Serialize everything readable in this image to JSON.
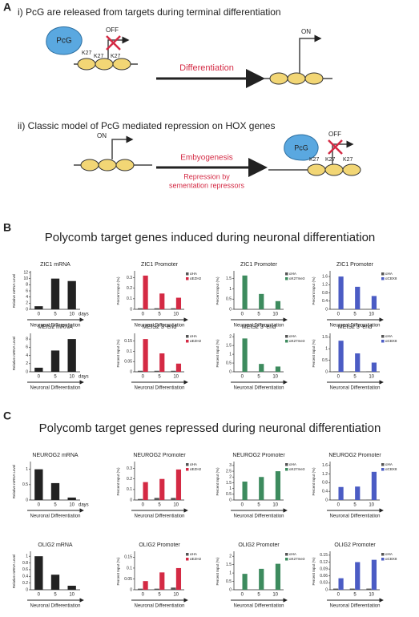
{
  "panel_a": {
    "label": "A",
    "i_title": "i) PcG are released from targets during terminal differentiation",
    "i_pcg": "PcG",
    "i_off": "OFF",
    "i_k27": [
      "K27",
      "K27",
      "K27"
    ],
    "i_arrow": "Differentiation",
    "i_on": "ON",
    "ii_title": "ii) Classic model of PcG mediated repression on HOX genes",
    "ii_on": "ON",
    "ii_arrow": "Embyogenesis",
    "ii_note": [
      "Repression by",
      "sementation repressors"
    ],
    "ii_pcg": "PcG",
    "ii_off": "OFF",
    "ii_k27": [
      "K27",
      "K27",
      "K27"
    ]
  },
  "panel_b": {
    "label": "B",
    "title": "Polycomb target genes induced during neuronal differentiation"
  },
  "panel_c": {
    "label": "C",
    "title": "Polycomb target genes repressed during neuronal differentiation"
  },
  "chart_data": [
    {
      "type": "bar",
      "title": "ZIC1 mRNA",
      "ylabel": "Relative mRNA Level",
      "xlabel": "Neuronal Differentiation",
      "x_unit": "days",
      "categories": [
        "0",
        "5",
        "10"
      ],
      "values": [
        1,
        10,
        9.2
      ],
      "color": "#222222",
      "ylim": [
        0,
        12
      ],
      "yticks": [
        0,
        2,
        4,
        6,
        8,
        10,
        12
      ]
    },
    {
      "type": "bar",
      "title": "ZIC1 Promoter",
      "ylabel": "Percent Input (%)",
      "xlabel": "Neuronal Differentiation",
      "categories": [
        "0",
        "5",
        "10"
      ],
      "series": [
        {
          "name": "αHA",
          "color": "#555555",
          "values": [
            0.01,
            0.01,
            0.01
          ]
        },
        {
          "name": "αEZH2",
          "color": "#d42a44",
          "values": [
            0.32,
            0.15,
            0.11
          ]
        }
      ],
      "ylim": [
        0,
        0.35
      ],
      "yticks": [
        0,
        0.1,
        0.2,
        0.3
      ]
    },
    {
      "type": "bar",
      "title": "ZIC1 Promoter",
      "ylabel": "Percent Input (%)",
      "xlabel": "Neuronal Differentiation",
      "categories": [
        "0",
        "5",
        "10"
      ],
      "series": [
        {
          "name": "αHA",
          "color": "#555555",
          "values": [
            0.02,
            0.02,
            0.02
          ]
        },
        {
          "name": "αK27me3",
          "color": "#3d8b5e",
          "values": [
            1.65,
            0.75,
            0.4
          ]
        }
      ],
      "ylim": [
        0,
        1.8
      ],
      "yticks": [
        0,
        0.5,
        1,
        1.5
      ]
    },
    {
      "type": "bar",
      "title": "ZIC1 Promoter",
      "ylabel": "Percent Input (%)",
      "xlabel": "Neuronal Differentiation",
      "categories": [
        "0",
        "5",
        "10"
      ],
      "series": [
        {
          "name": "αHA",
          "color": "#555555",
          "values": [
            0.02,
            0.02,
            0.02
          ]
        },
        {
          "name": "αCBX8",
          "color": "#4b5cc4",
          "values": [
            1.6,
            1.1,
            0.65
          ]
        }
      ],
      "ylim": [
        0,
        1.8
      ],
      "yticks": [
        0,
        0.4,
        0.8,
        1.2,
        1.6
      ]
    },
    {
      "type": "bar",
      "title": "MEIS2 mRNA",
      "ylabel": "Relative mRNA Level",
      "xlabel": "Neuronal Differentiation",
      "x_unit": "days",
      "categories": [
        "0",
        "5",
        "10"
      ],
      "values": [
        1,
        5.2,
        8
      ],
      "color": "#222222",
      "ylim": [
        0,
        9
      ],
      "yticks": [
        0,
        2,
        4,
        6,
        8
      ]
    },
    {
      "type": "bar",
      "title": "MEIS2 3'-end",
      "ylabel": "Percent Input (%)",
      "xlabel": "Neuronal Differentiation",
      "categories": [
        "0",
        "5",
        "10"
      ],
      "series": [
        {
          "name": "αHA",
          "color": "#555555",
          "values": [
            0.005,
            0.005,
            0.005
          ]
        },
        {
          "name": "αEZH2",
          "color": "#d42a44",
          "values": [
            0.16,
            0.09,
            0.04
          ]
        }
      ],
      "ylim": [
        0,
        0.18
      ],
      "yticks": [
        0,
        0.05,
        0.1,
        0.15
      ]
    },
    {
      "type": "bar",
      "title": "MEIS2 3'-end",
      "ylabel": "Percent Input (%)",
      "xlabel": "Neuronal Differentiation",
      "categories": [
        "0",
        "5",
        "10"
      ],
      "series": [
        {
          "name": "αHA",
          "color": "#555555",
          "values": [
            0.02,
            0.02,
            0.02
          ]
        },
        {
          "name": "αK27me3",
          "color": "#3d8b5e",
          "values": [
            1.9,
            0.45,
            0.3
          ]
        }
      ],
      "ylim": [
        0,
        2.1
      ],
      "yticks": [
        0,
        0.5,
        1,
        1.5,
        2
      ]
    },
    {
      "type": "bar",
      "title": "MEIS2 3'-end",
      "ylabel": "Percent Input (%)",
      "xlabel": "Neuronal Differentiation",
      "categories": [
        "0",
        "5",
        "10"
      ],
      "series": [
        {
          "name": "αHA",
          "color": "#555555",
          "values": [
            0.02,
            0.02,
            0.02
          ]
        },
        {
          "name": "αCBX8",
          "color": "#4b5cc4",
          "values": [
            1.35,
            0.8,
            0.4
          ]
        }
      ],
      "ylim": [
        0,
        1.6
      ],
      "yticks": [
        0,
        0.5,
        1,
        1.5
      ]
    },
    {
      "type": "bar",
      "title": "NEUROG2 mRNA",
      "ylabel": "Relative mRNA Level",
      "xlabel": "Neuronal Differentiation",
      "x_unit": "days",
      "categories": [
        "0",
        "5",
        "10"
      ],
      "values": [
        1,
        0.55,
        0.08
      ],
      "color": "#222222",
      "ylim": [
        0,
        1.2
      ],
      "yticks": [
        0,
        0.5,
        1
      ]
    },
    {
      "type": "bar",
      "title": "NEUROG2 Promoter",
      "ylabel": "Percent Input (%)",
      "xlabel": "Neuronal Differentiation",
      "categories": [
        "0",
        "5",
        "10"
      ],
      "series": [
        {
          "name": "αHA",
          "color": "#555555",
          "values": [
            0.01,
            0.02,
            0.02
          ]
        },
        {
          "name": "αEZH2",
          "color": "#d42a44",
          "values": [
            0.17,
            0.2,
            0.29
          ]
        }
      ],
      "ylim": [
        0,
        0.35
      ],
      "yticks": [
        0,
        0.1,
        0.2,
        0.3
      ]
    },
    {
      "type": "bar",
      "title": "NEUROG2 Promoter",
      "ylabel": "Percent Input (%)",
      "xlabel": "Neuronal Differentiation",
      "categories": [
        "0",
        "5",
        "10"
      ],
      "series": [
        {
          "name": "αHA",
          "color": "#555555",
          "values": [
            0.02,
            0.02,
            0.02
          ]
        },
        {
          "name": "αK27me3",
          "color": "#3d8b5e",
          "values": [
            1.6,
            2.0,
            2.5
          ]
        }
      ],
      "ylim": [
        0,
        3.2
      ],
      "yticks": [
        0,
        0.5,
        1,
        1.5,
        2,
        2.5,
        3
      ]
    },
    {
      "type": "bar",
      "title": "NEUROG2 Promoter",
      "ylabel": "Percent Input (%)",
      "xlabel": "Neuronal Differentiation",
      "categories": [
        "0",
        "5",
        "10"
      ],
      "series": [
        {
          "name": "αHA",
          "color": "#555555",
          "values": [
            0.02,
            0.02,
            0.02
          ]
        },
        {
          "name": "αCBX8",
          "color": "#4b5cc4",
          "values": [
            0.6,
            0.62,
            1.3
          ]
        }
      ],
      "ylim": [
        0,
        1.7
      ],
      "yticks": [
        0,
        0.4,
        0.8,
        1.2,
        1.6
      ]
    },
    {
      "type": "bar",
      "title": "OLIG2 mRNA",
      "ylabel": "Relative mRNA Level",
      "xlabel": "Neuronal Differentiation",
      "categories": [
        "0",
        "5",
        "10"
      ],
      "values": [
        1,
        0.45,
        0.12
      ],
      "color": "#222222",
      "ylim": [
        0,
        1.1
      ],
      "yticks": [
        0,
        0.2,
        0.4,
        0.6,
        0.8,
        1
      ]
    },
    {
      "type": "bar",
      "title": "OLIG2 Promoter",
      "ylabel": "Percent Input (%)",
      "xlabel": "Neuronal Differentiation",
      "categories": [
        "0",
        "5",
        "10"
      ],
      "series": [
        {
          "name": "αHA",
          "color": "#555555",
          "values": [
            0.005,
            0.005,
            0.01
          ]
        },
        {
          "name": "αEZH2",
          "color": "#d42a44",
          "values": [
            0.04,
            0.08,
            0.1
          ]
        }
      ],
      "ylim": [
        0,
        0.17
      ],
      "yticks": [
        0,
        0.05,
        0.1,
        0.15
      ]
    },
    {
      "type": "bar",
      "title": "OLIG2 Promoter",
      "ylabel": "Percent Input (%)",
      "xlabel": "Neuronal Differentiation",
      "categories": [
        "0",
        "5",
        "10"
      ],
      "series": [
        {
          "name": "αHA",
          "color": "#555555",
          "values": [
            0.02,
            0.02,
            0.02
          ]
        },
        {
          "name": "αK27me3",
          "color": "#3d8b5e",
          "values": [
            0.95,
            1.25,
            1.55
          ]
        }
      ],
      "ylim": [
        0,
        2.2
      ],
      "yticks": [
        0,
        0.5,
        1,
        1.5,
        2
      ]
    },
    {
      "type": "bar",
      "title": "OLIG2 Promoter",
      "ylabel": "Percent Input (%)",
      "xlabel": "Neuronal Differentiation",
      "categories": [
        "0",
        "5",
        "10"
      ],
      "series": [
        {
          "name": "αHA",
          "color": "#555555",
          "values": [
            0.005,
            0.005,
            0.005
          ]
        },
        {
          "name": "αCBX8",
          "color": "#4b5cc4",
          "values": [
            0.05,
            0.12,
            0.13
          ]
        }
      ],
      "ylim": [
        0,
        0.16
      ],
      "yticks": [
        0,
        0.03,
        0.06,
        0.09,
        0.12,
        0.15
      ]
    }
  ]
}
